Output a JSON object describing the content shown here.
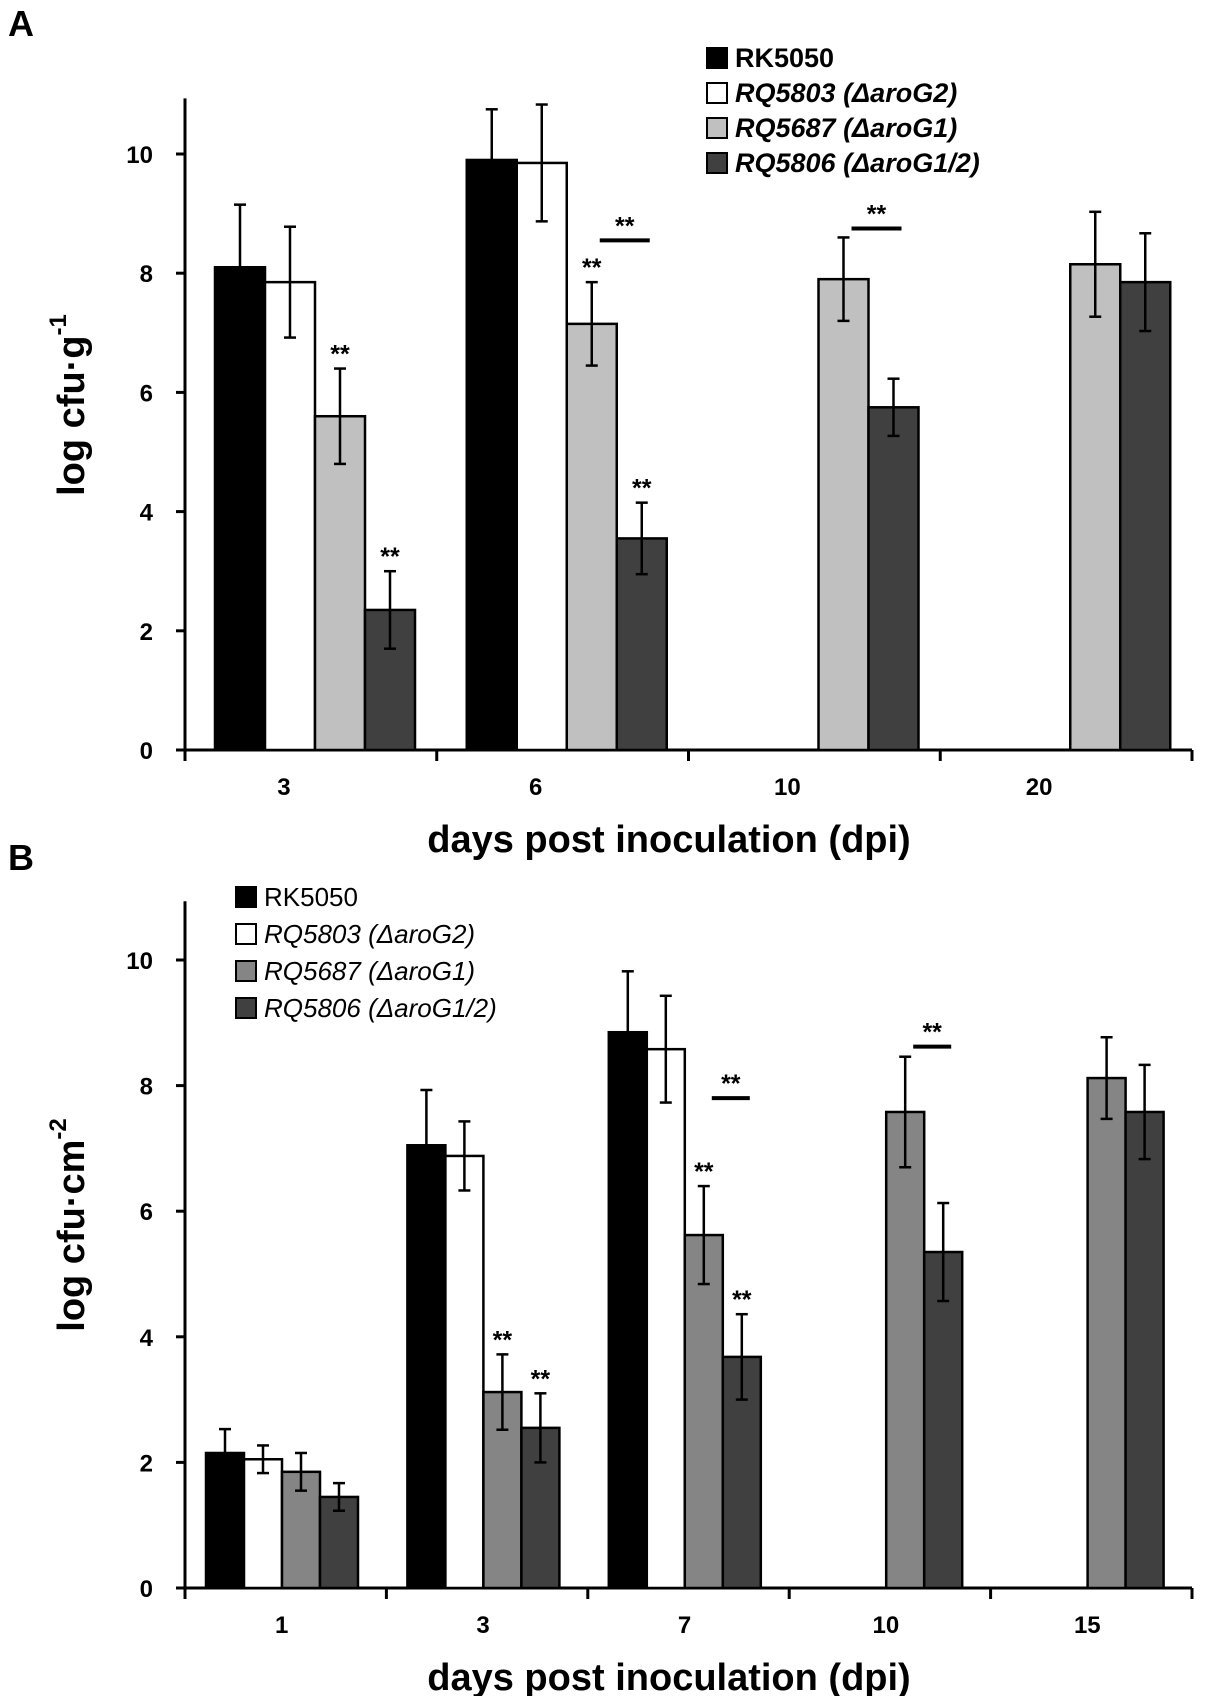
{
  "chart_data": [
    {
      "panel": "A",
      "type": "bar",
      "xlabel": "days post inoculation (dpi)",
      "ylabel_main": "log cfu·g",
      "ylabel_sup": "-1",
      "ylim": [
        0,
        11
      ],
      "yticks": [
        0,
        2,
        4,
        6,
        8,
        10
      ],
      "categories": [
        "3",
        "6",
        "10",
        "20"
      ],
      "legend_position": "top-right",
      "series": [
        {
          "name": "RK5050",
          "italic": false,
          "color": "#000000",
          "values": [
            8.1,
            9.9,
            null,
            null
          ],
          "errors": [
            1.05,
            0.85,
            null,
            null
          ],
          "stars": [
            false,
            false,
            false,
            false
          ]
        },
        {
          "name": "RQ5803 (ΔaroG2)",
          "italic": true,
          "color": "#ffffff",
          "values": [
            7.85,
            9.85,
            null,
            null
          ],
          "errors": [
            0.93,
            0.98,
            null,
            null
          ],
          "stars": [
            false,
            false,
            false,
            false
          ]
        },
        {
          "name": "RQ5687 (ΔaroG1)",
          "italic": true,
          "color": "#c0c0c0",
          "values": [
            5.6,
            7.15,
            7.9,
            8.15
          ],
          "errors": [
            0.8,
            0.7,
            0.7,
            0.88
          ],
          "stars": [
            true,
            true,
            false,
            false
          ]
        },
        {
          "name": "RQ5806 (ΔaroG1/2)",
          "italic": true,
          "color": "#404040",
          "values": [
            2.35,
            3.55,
            5.75,
            7.85
          ],
          "errors": [
            0.65,
            0.6,
            0.48,
            0.82
          ],
          "stars": [
            true,
            true,
            false,
            false
          ]
        }
      ],
      "significance_bars": [
        {
          "category": "6",
          "from_series": 2,
          "to_series": 3,
          "value": 8.55,
          "label": "**"
        },
        {
          "category": "10",
          "from_series": 2,
          "to_series": 3,
          "value": 8.75,
          "label": "**"
        }
      ],
      "star_label": "**"
    },
    {
      "panel": "B",
      "type": "bar",
      "xlabel": "days post inoculation (dpi)",
      "ylabel_main": "log cfu·cm",
      "ylabel_sup": "-2",
      "ylim": [
        0,
        11
      ],
      "yticks": [
        0,
        2,
        4,
        6,
        8,
        10
      ],
      "categories": [
        "1",
        "3",
        "7",
        "10",
        "15"
      ],
      "legend_position": "top-left",
      "series": [
        {
          "name": "RK5050",
          "italic": false,
          "color": "#000000",
          "values": [
            2.15,
            7.05,
            8.85,
            null,
            null
          ],
          "errors": [
            0.38,
            0.88,
            0.97,
            null,
            null
          ],
          "stars": [
            false,
            false,
            false,
            false,
            false
          ]
        },
        {
          "name": "RQ5803 (ΔaroG2)",
          "italic": true,
          "color": "#ffffff",
          "values": [
            2.05,
            6.88,
            8.58,
            null,
            null
          ],
          "errors": [
            0.22,
            0.55,
            0.85,
            null,
            null
          ],
          "stars": [
            false,
            false,
            false,
            false,
            false
          ]
        },
        {
          "name": "RQ5687 (ΔaroG1)",
          "italic": true,
          "color": "#858585",
          "values": [
            1.85,
            3.12,
            5.62,
            7.58,
            8.12
          ],
          "errors": [
            0.3,
            0.6,
            0.78,
            0.88,
            0.65
          ],
          "stars": [
            false,
            true,
            true,
            false,
            false
          ]
        },
        {
          "name": "RQ5806 (ΔaroG1/2)",
          "italic": true,
          "color": "#404040",
          "values": [
            1.45,
            2.55,
            3.68,
            5.35,
            7.58
          ],
          "errors": [
            0.22,
            0.55,
            0.68,
            0.78,
            0.75
          ],
          "stars": [
            false,
            true,
            true,
            false,
            false
          ]
        }
      ],
      "significance_bars": [
        {
          "category": "7",
          "from_series": 2,
          "to_series": 3,
          "value": 7.8,
          "label": "**"
        },
        {
          "category": "10",
          "from_series": 2,
          "to_series": 3,
          "value": 8.62,
          "label": "**"
        }
      ],
      "star_label": "**"
    }
  ]
}
